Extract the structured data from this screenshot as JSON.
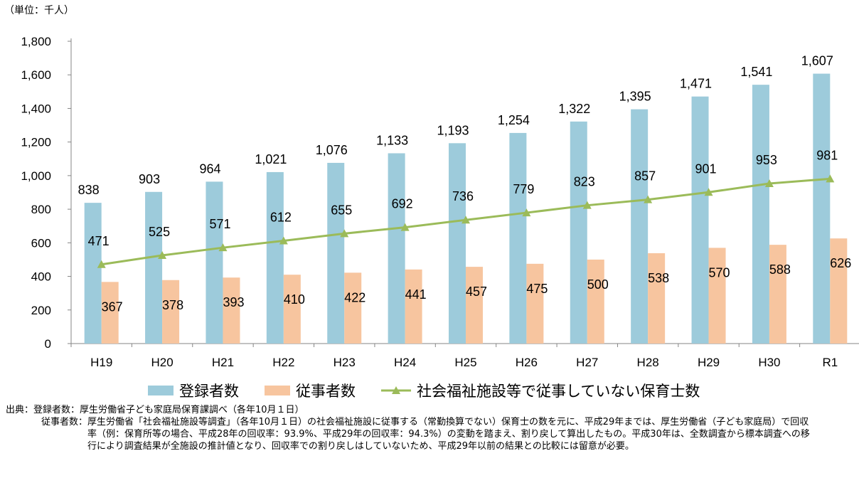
{
  "unit": "（単位：千人）",
  "chart_data": {
    "type": "bar",
    "categories": [
      "H19",
      "H20",
      "H21",
      "H22",
      "H23",
      "H24",
      "H25",
      "H26",
      "H27",
      "H28",
      "H29",
      "H30",
      "R1"
    ],
    "series": [
      {
        "name": "登録者数",
        "kind": "bar",
        "color": "#9dcbdb",
        "values": [
          838,
          903,
          964,
          1021,
          1076,
          1133,
          1193,
          1254,
          1322,
          1395,
          1471,
          1541,
          1607
        ],
        "labels": [
          "838",
          "903",
          "964",
          "1,021",
          "1,076",
          "1,133",
          "1,193",
          "1,254",
          "1,322",
          "1,395",
          "1,471",
          "1,541",
          "1,607"
        ]
      },
      {
        "name": "従事者数",
        "kind": "bar",
        "color": "#f7c59f",
        "values": [
          367,
          378,
          393,
          410,
          422,
          441,
          457,
          475,
          500,
          538,
          570,
          588,
          626
        ],
        "labels": [
          "367",
          "378",
          "393",
          "410",
          "422",
          "441",
          "457",
          "475",
          "500",
          "538",
          "570",
          "588",
          "626"
        ]
      },
      {
        "name": "社会福祉施設等で従事していない保育士数",
        "kind": "line",
        "color": "#9bbb59",
        "values": [
          471,
          525,
          571,
          612,
          655,
          692,
          736,
          779,
          823,
          857,
          901,
          953,
          981
        ],
        "labels": [
          "471",
          "525",
          "571",
          "612",
          "655",
          "692",
          "736",
          "779",
          "823",
          "857",
          "901",
          "953",
          "981"
        ]
      }
    ],
    "yticks": [
      "0",
      "200",
      "400",
      "600",
      "800",
      "1,000",
      "1,200",
      "1,400",
      "1,600",
      "1,800"
    ],
    "ylim": [
      0,
      1800
    ],
    "legend_position": "bottom"
  },
  "source": [
    {
      "label": "出典：登録者数：",
      "text": "厚生労働省子ども家庭局保育課調べ（各年10月１日）"
    },
    {
      "label": "従事者数：",
      "text": "厚生労働省「社会福祉施設等調査」（各年10月１日）の社会福祉施設に従事する（常勤換算でない）保育士の数を元に、平成29年までは、厚生労働省（子ども家庭局）で回収率（例：保育所等の場合、平成28年の回収率：93.9%、平成29年の回収率：94.3%）の変動を踏まえ、割り戻して算出したもの。平成30年は、全数調査から標本調査への移行により調査結果が全施設の推計値となり、回収率での割り戻しはしていないため、平成29年以前の結果との比較には留意が必要。"
    }
  ]
}
